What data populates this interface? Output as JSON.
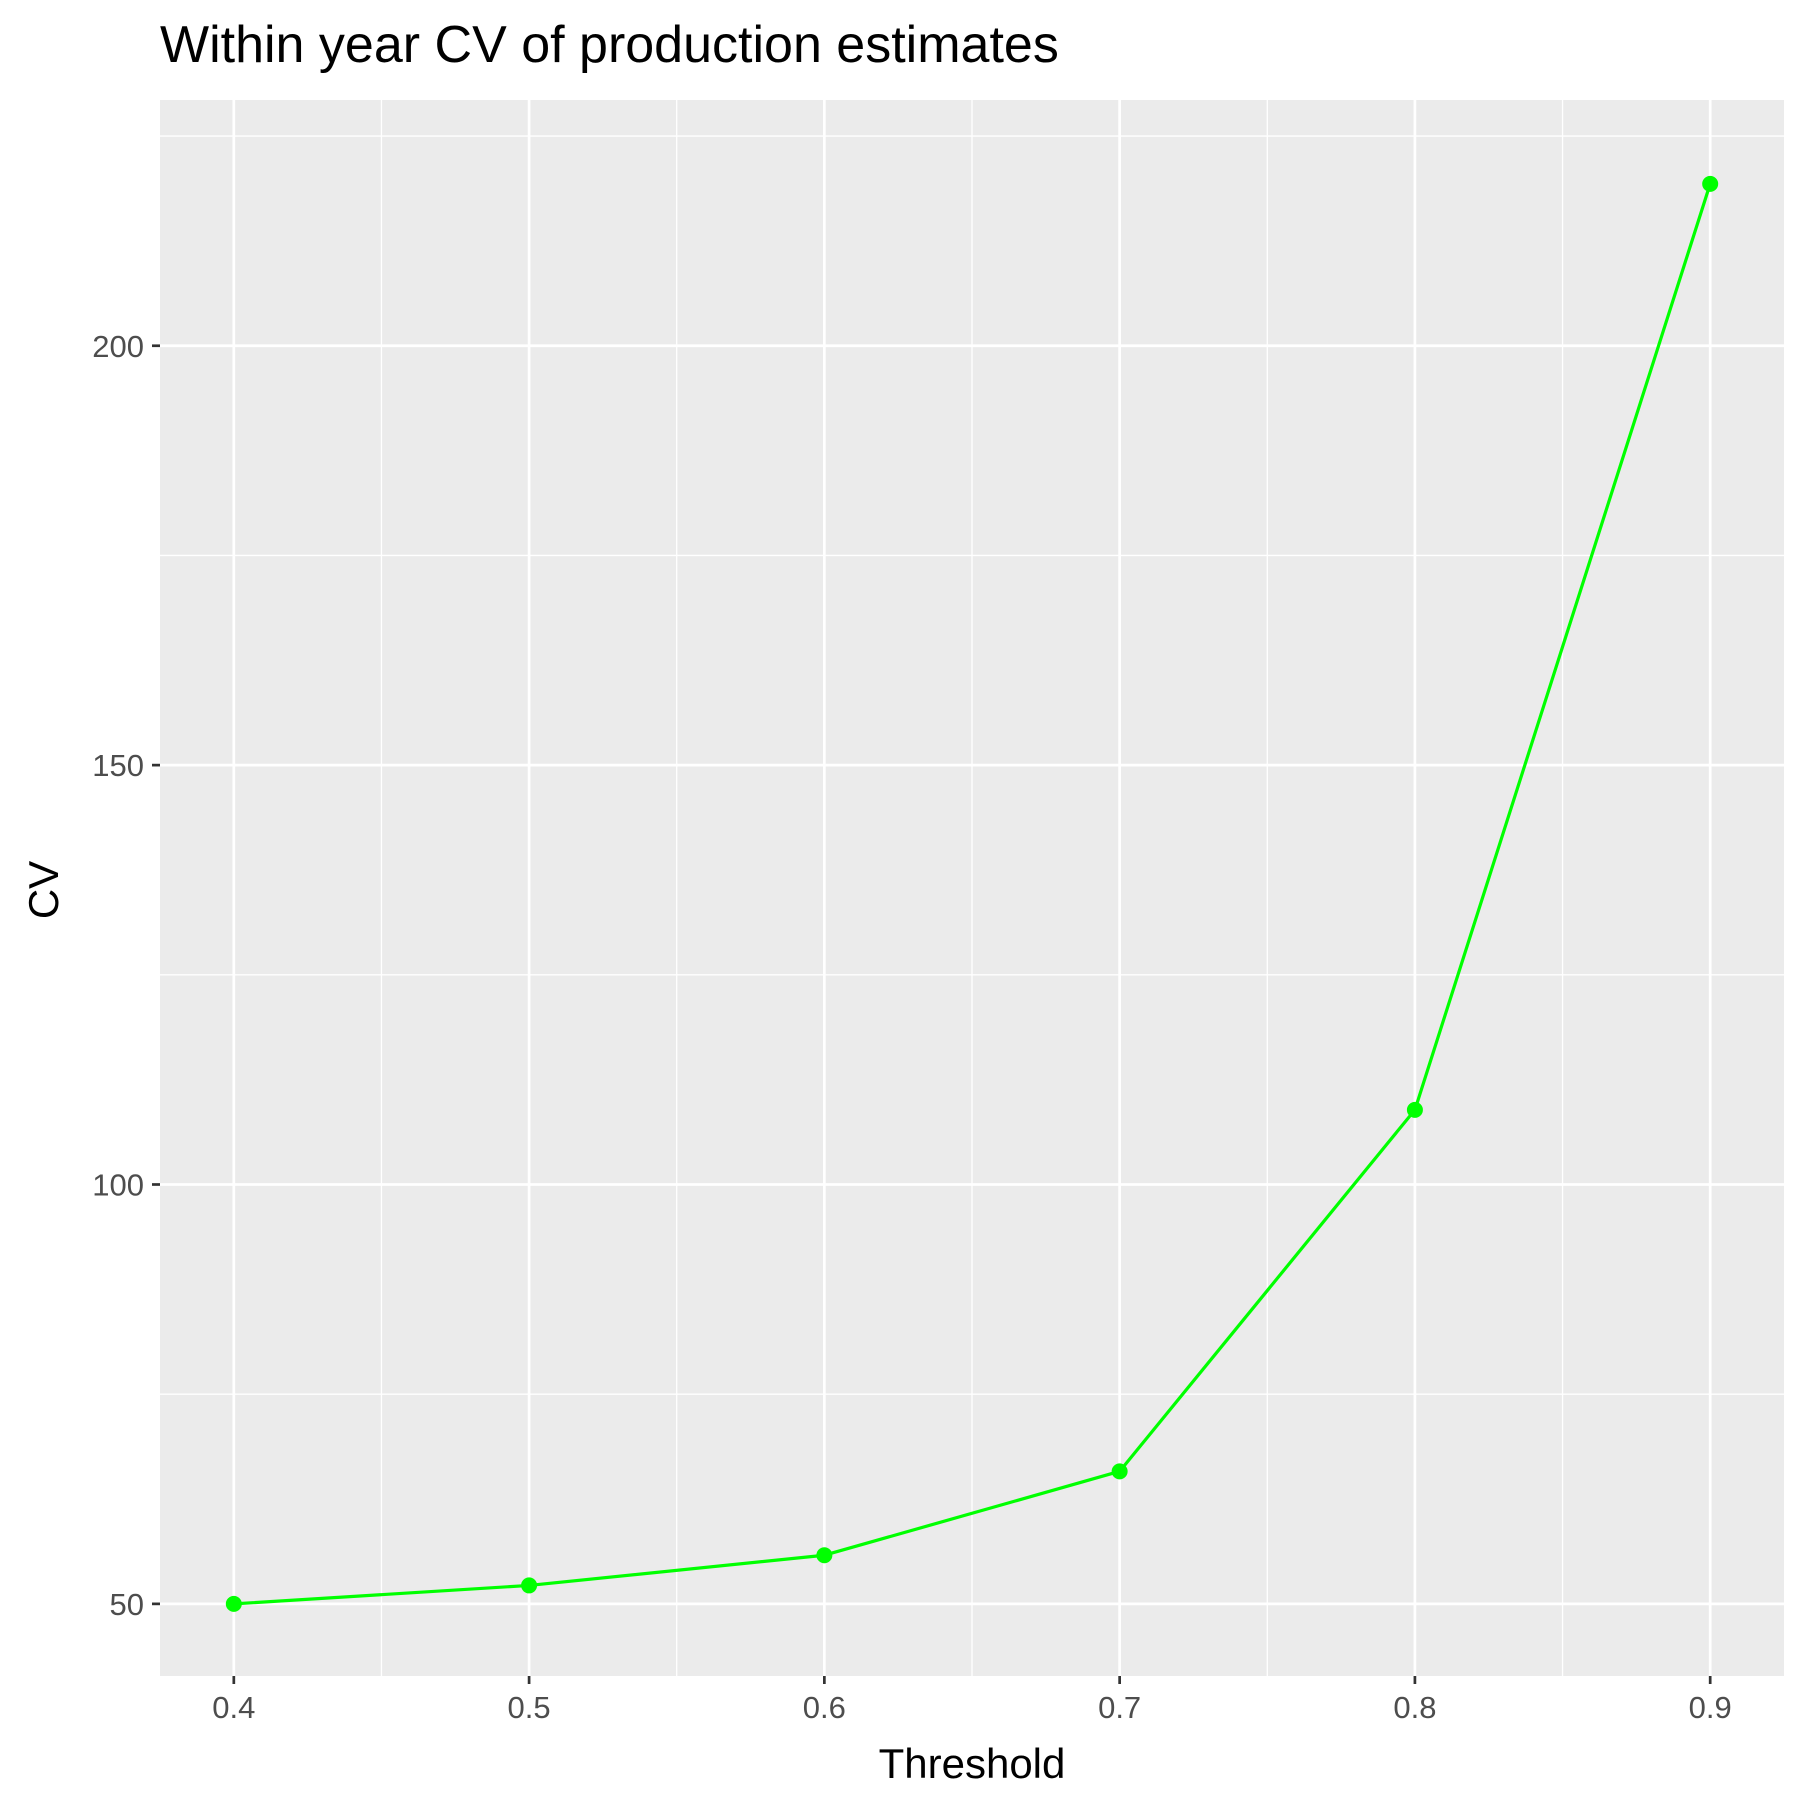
{
  "chart_data": {
    "type": "line",
    "title": "Within year CV of production estimates",
    "xlabel": "Threshold",
    "ylabel": "CV",
    "x": [
      0.4,
      0.5,
      0.6,
      0.7,
      0.8,
      0.9
    ],
    "series": [
      {
        "values": [
          50.0,
          52.2,
          55.8,
          65.8,
          108.9,
          219.3
        ]
      }
    ],
    "xlim": [
      0.375,
      0.925
    ],
    "ylim": [
      41.4,
      229.3
    ],
    "x_ticks": [
      0.4,
      0.5,
      0.6,
      0.7,
      0.8,
      0.9
    ],
    "x_tick_labels": [
      "0.4",
      "0.5",
      "0.6",
      "0.7",
      "0.8",
      "0.9"
    ],
    "y_ticks": [
      50,
      100,
      150,
      200
    ],
    "y_tick_labels": [
      "50",
      "100",
      "150",
      "200"
    ],
    "grid": true,
    "legend": "none",
    "colors": {
      "series": "#00ff00",
      "panel_background": "#ebebeb",
      "grid": "#ffffff",
      "tick_text": "#4d4d4d",
      "text": "#000000"
    }
  }
}
